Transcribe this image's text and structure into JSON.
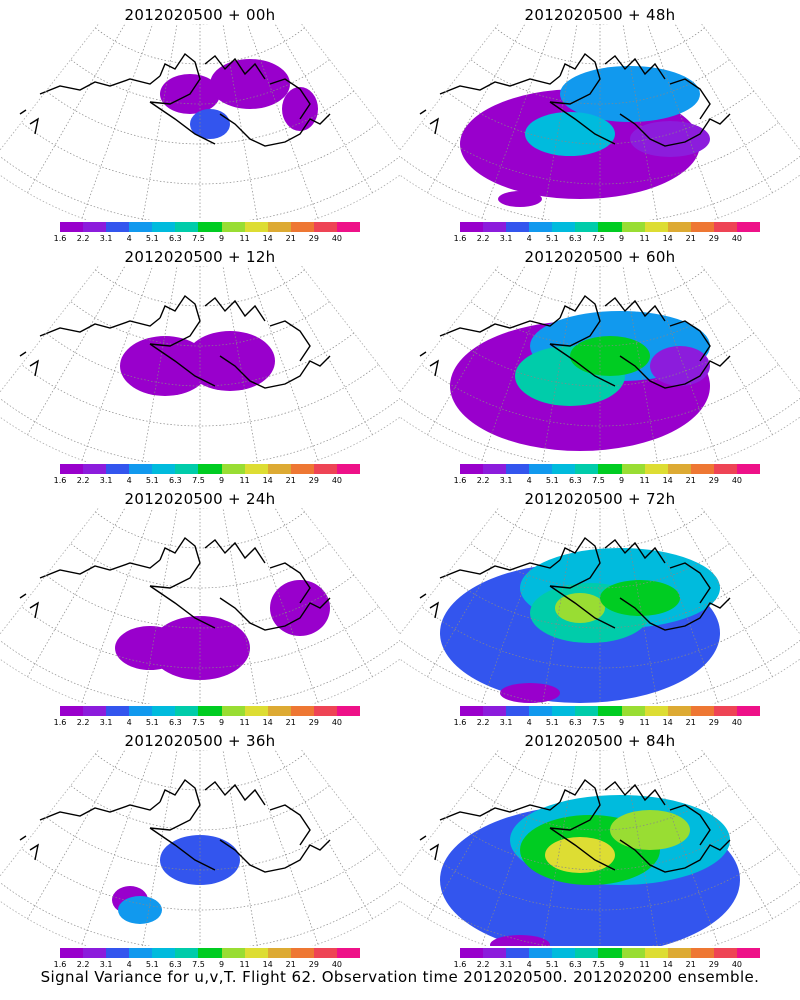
{
  "panels": [
    {
      "title": "2012020500 + 00h",
      "level": 0
    },
    {
      "title": "2012020500 + 48h",
      "level": 4
    },
    {
      "title": "2012020500 + 12h",
      "level": 1
    },
    {
      "title": "2012020500 + 60h",
      "level": 5
    },
    {
      "title": "2012020500 + 24h",
      "level": 2
    },
    {
      "title": "2012020500 + 72h",
      "level": 6
    },
    {
      "title": "2012020500 + 36h",
      "level": 3
    },
    {
      "title": "2012020500 + 84h",
      "level": 7
    }
  ],
  "colorbar": {
    "labels": [
      "1.6",
      "2.2",
      "3.1",
      "4",
      "5.1",
      "6.3",
      "7.5",
      "9",
      "11",
      "14",
      "21",
      "29",
      "40"
    ],
    "colors": [
      "#9900cc",
      "#8c1cdc",
      "#3355ee",
      "#1199ee",
      "#00bbdd",
      "#00ccaa",
      "#00cc22",
      "#99dd33",
      "#dddd33",
      "#ddaa33",
      "#ee7733",
      "#ee4455",
      "#ee1188"
    ]
  },
  "caption": "Signal Variance for u,v,T. Flight 62. Observation time 2012020500. 2012020200 ensemble.",
  "chart_data": {
    "type": "heatmap",
    "colorbar_levels": [
      1.6,
      2.2,
      3.1,
      4,
      5.1,
      6.3,
      7.5,
      9,
      11,
      14,
      21,
      29,
      40
    ],
    "panels": [
      "2012020500 + 00h",
      "2012020500 + 12h",
      "2012020500 + 24h",
      "2012020500 + 36h",
      "2012020500 + 48h",
      "2012020500 + 60h",
      "2012020500 + 72h",
      "2012020500 + 84h"
    ]
  }
}
